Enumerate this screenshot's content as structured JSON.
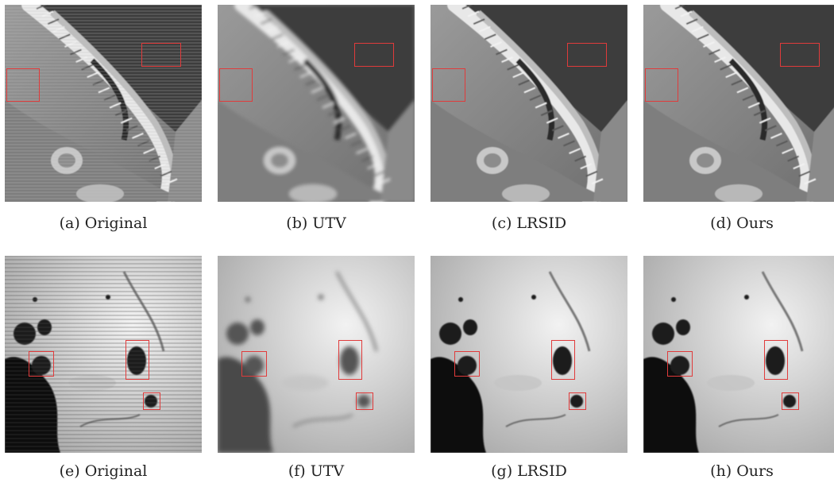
{
  "figure": {
    "rows": [
      {
        "scene": "mountain-coast",
        "panels": [
          {
            "caption": "(a)  Original",
            "style": "original-striped"
          },
          {
            "caption": "(b)  UTV",
            "style": "smooth"
          },
          {
            "caption": "(c)  LRSID",
            "style": "sharp"
          },
          {
            "caption": "(d)  Ours",
            "style": "sharp"
          }
        ]
      },
      {
        "scene": "cloud-ice",
        "panels": [
          {
            "caption": "(e)  Original",
            "style": "original-striped"
          },
          {
            "caption": "(f)  UTV",
            "style": "smooth"
          },
          {
            "caption": "(g)  LRSID",
            "style": "sharp"
          },
          {
            "caption": "(h)  Ours",
            "style": "sharp"
          }
        ]
      }
    ],
    "highlight_color": "#e03b3b"
  }
}
